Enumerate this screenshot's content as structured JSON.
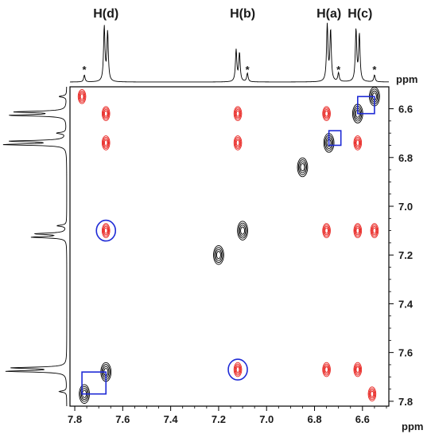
{
  "chart_data": {
    "type": "scatter",
    "plot_kind": "2D NMR NOESY/ROESY contour spectrum with 1D projections",
    "x_axis": {
      "unit_label": "ppm",
      "range": [
        7.82,
        6.49
      ],
      "reversed": true,
      "ticks": [
        "7.8",
        "7.6",
        "7.4",
        "7.2",
        "7.0",
        "6.8",
        "6.6"
      ],
      "tick_values": [
        7.8,
        7.6,
        7.4,
        7.2,
        7.0,
        6.8,
        6.6
      ]
    },
    "y_axis": {
      "unit_label": "ppm",
      "range": [
        6.51,
        7.82
      ],
      "position": "right",
      "ticks": [
        "6.6",
        "6.8",
        "7.0",
        "7.2",
        "7.4",
        "7.6",
        "7.8"
      ],
      "tick_values": [
        6.6,
        6.8,
        7.0,
        7.2,
        7.4,
        7.6,
        7.8
      ]
    },
    "peak_labels": [
      {
        "text": "H(d)",
        "ppm": 7.67
      },
      {
        "text": "H(b)",
        "ppm": 7.1
      },
      {
        "text": "H(a)",
        "ppm": 6.74
      },
      {
        "text": "H(c)",
        "ppm": 6.61
      }
    ],
    "impurity_marker": "*",
    "impurity_positions_ppm": [
      7.76,
      7.08,
      6.7,
      6.55
    ],
    "projection_peaks": [
      {
        "ppm": 7.76,
        "height": 0.12
      },
      {
        "ppm": 7.67,
        "height": 0.95
      },
      {
        "ppm": 7.12,
        "height": 0.55
      },
      {
        "ppm": 7.08,
        "height": 0.15
      },
      {
        "ppm": 6.74,
        "height": 0.98
      },
      {
        "ppm": 6.7,
        "height": 0.15
      },
      {
        "ppm": 6.62,
        "height": 0.9
      },
      {
        "ppm": 6.55,
        "height": 0.12
      }
    ],
    "series": [
      {
        "name": "diagonal peaks",
        "color": "#000000",
        "points": [
          {
            "x": 7.76,
            "y": 7.77
          },
          {
            "x": 7.67,
            "y": 7.68
          },
          {
            "x": 7.2,
            "y": 7.2
          },
          {
            "x": 7.1,
            "y": 7.1
          },
          {
            "x": 6.85,
            "y": 6.84
          },
          {
            "x": 6.74,
            "y": 6.74
          },
          {
            "x": 6.62,
            "y": 6.62
          },
          {
            "x": 6.55,
            "y": 6.55
          }
        ]
      },
      {
        "name": "cross peaks",
        "color": "#e8201c",
        "points": [
          {
            "x": 7.77,
            "y": 6.55
          },
          {
            "x": 7.67,
            "y": 6.62
          },
          {
            "x": 7.67,
            "y": 6.74
          },
          {
            "x": 7.12,
            "y": 6.62
          },
          {
            "x": 7.12,
            "y": 6.74
          },
          {
            "x": 7.67,
            "y": 7.1
          },
          {
            "x": 6.75,
            "y": 7.1
          },
          {
            "x": 6.62,
            "y": 7.1
          },
          {
            "x": 6.55,
            "y": 7.1
          },
          {
            "x": 7.12,
            "y": 7.67
          },
          {
            "x": 6.75,
            "y": 7.67
          },
          {
            "x": 6.62,
            "y": 7.67
          },
          {
            "x": 6.56,
            "y": 7.77
          },
          {
            "x": 6.75,
            "y": 6.62
          },
          {
            "x": 6.62,
            "y": 6.74
          }
        ]
      }
    ],
    "highlight_circles": [
      {
        "x": 7.67,
        "y": 7.1
      },
      {
        "x": 7.12,
        "y": 7.67
      }
    ],
    "highlight_boxes": [
      {
        "x1": 7.77,
        "x2": 7.67,
        "y1": 7.68,
        "y2": 7.77
      },
      {
        "x1": 6.74,
        "x2": 6.69,
        "y1": 6.69,
        "y2": 6.75
      },
      {
        "x1": 6.62,
        "x2": 6.55,
        "y1": 6.55,
        "y2": 6.62
      }
    ],
    "grid": false,
    "legend": "none"
  }
}
